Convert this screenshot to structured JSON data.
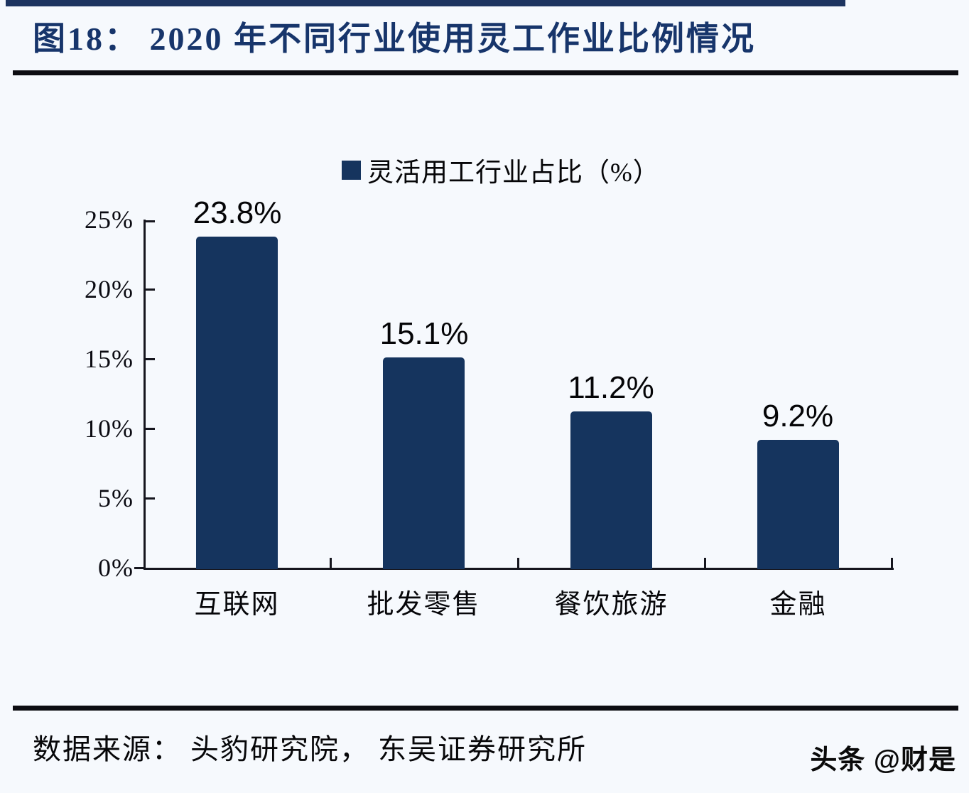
{
  "page": {
    "background": "#f6f9fd",
    "accent_color": "#1d3460"
  },
  "header": {
    "title": "图18：  2020 年不同行业使用灵工作业比例情况"
  },
  "chart_data": {
    "type": "bar",
    "title": "图18：  2020 年不同行业使用灵工作业比例情况",
    "legend": {
      "label": "灵活用工行业占比（%）",
      "position": "top-center",
      "swatch_color": "#15345e"
    },
    "categories": [
      "互联网",
      "批发零售",
      "餐饮旅游",
      "金融"
    ],
    "values": [
      23.8,
      15.1,
      11.2,
      9.2
    ],
    "value_labels": [
      "23.8%",
      "15.1%",
      "11.2%",
      "9.2%"
    ],
    "y_ticks": [
      "0%",
      "5%",
      "10%",
      "15%",
      "20%",
      "25%"
    ],
    "ylim": [
      0,
      25
    ],
    "xlabel": "",
    "ylabel": "",
    "grid": false,
    "bar_color": "#15345e",
    "axis_color": "#16161e"
  },
  "footer": {
    "source": "数据来源：  头豹研究院，  东吴证券研究所",
    "watermark": "头条 @财是"
  }
}
